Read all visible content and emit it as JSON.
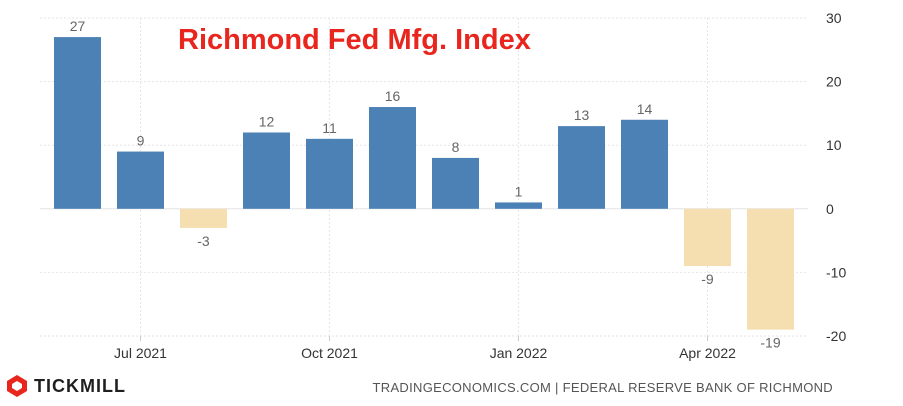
{
  "chart_data": {
    "type": "bar",
    "title": "Richmond Fed Mfg. Index",
    "categories": [
      "Jun 2021",
      "Jul 2021",
      "Aug 2021",
      "Sep 2021",
      "Oct 2021",
      "Nov 2021",
      "Dec 2021",
      "Jan 2022",
      "Feb 2022",
      "Mar 2022",
      "Apr 2022",
      "May 2022"
    ],
    "values": [
      27,
      9,
      -3,
      12,
      11,
      16,
      8,
      1,
      13,
      14,
      -9,
      -19
    ],
    "x_tick_labels": [
      "Jul 2021",
      "Oct 2021",
      "Jan 2022",
      "Apr 2022"
    ],
    "y_tick_labels": [
      "30",
      "20",
      "10",
      "0",
      "-10",
      "-20"
    ],
    "ylim": [
      -20,
      30
    ],
    "y_axis_side": "right",
    "grid": true,
    "colors": {
      "positive": "#4b81b5",
      "negative": "#f5deb0",
      "label": "#666666"
    }
  },
  "footer": {
    "brand": "TICKMILL",
    "brand_icon": "tickmill-logo-icon",
    "source": "TRADINGECONOMICS.COM | FEDERAL RESERVE BANK OF RICHMOND"
  }
}
